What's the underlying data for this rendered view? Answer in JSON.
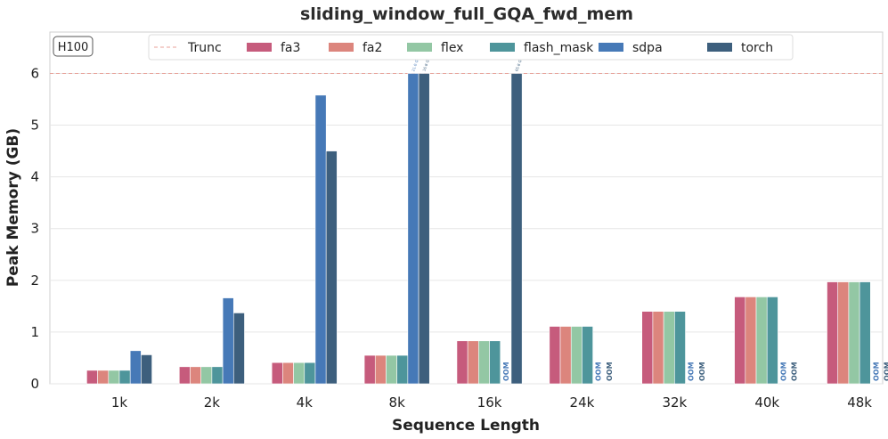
{
  "chart_data": {
    "type": "bar",
    "title": "sliding_window_full_GQA_fwd_mem",
    "xlabel": "Sequence Length",
    "ylabel": "Peak Memory (GB)",
    "ylim": [
      0,
      6.8
    ],
    "yticks": [
      0,
      1,
      2,
      3,
      4,
      5,
      6
    ],
    "grid": "y",
    "legend_position": "top",
    "device_badge": "H100",
    "truncation": {
      "label": "Trunc",
      "value": 6,
      "color": "#e8a29a"
    },
    "categories": [
      "1k",
      "2k",
      "4k",
      "8k",
      "16k",
      "24k",
      "32k",
      "40k",
      "48k"
    ],
    "oom_label": "OOM",
    "series": [
      {
        "name": "fa3",
        "color": "#c65b7c",
        "values": [
          0.26,
          0.33,
          0.41,
          0.55,
          0.83,
          1.11,
          1.4,
          1.68,
          1.97
        ]
      },
      {
        "name": "fa2",
        "color": "#dc857d",
        "values": [
          0.26,
          0.33,
          0.41,
          0.55,
          0.83,
          1.11,
          1.4,
          1.68,
          1.97
        ]
      },
      {
        "name": "flex",
        "color": "#93c7a4",
        "values": [
          0.26,
          0.33,
          0.41,
          0.55,
          0.83,
          1.11,
          1.4,
          1.68,
          1.97
        ]
      },
      {
        "name": "flash_mask",
        "color": "#4e959b",
        "values": [
          0.26,
          0.33,
          0.41,
          0.55,
          0.83,
          1.11,
          1.4,
          1.68,
          1.97
        ]
      },
      {
        "name": "sdpa",
        "color": "#4679b7",
        "values": [
          0.64,
          1.66,
          5.58,
          6,
          "OOM",
          "OOM",
          "OOM",
          "OOM",
          "OOM"
        ],
        "truncated_labels": [
          null,
          null,
          null,
          "21.0 GB",
          null,
          null,
          null,
          null,
          null
        ]
      },
      {
        "name": "torch",
        "color": "#3d5f7d",
        "values": [
          0.56,
          1.37,
          4.5,
          6,
          6,
          "OOM",
          "OOM",
          "OOM",
          "OOM"
        ],
        "truncated_labels": [
          null,
          null,
          null,
          "16.8 GB",
          "65.8 GB",
          null,
          null,
          null,
          null
        ]
      }
    ]
  }
}
